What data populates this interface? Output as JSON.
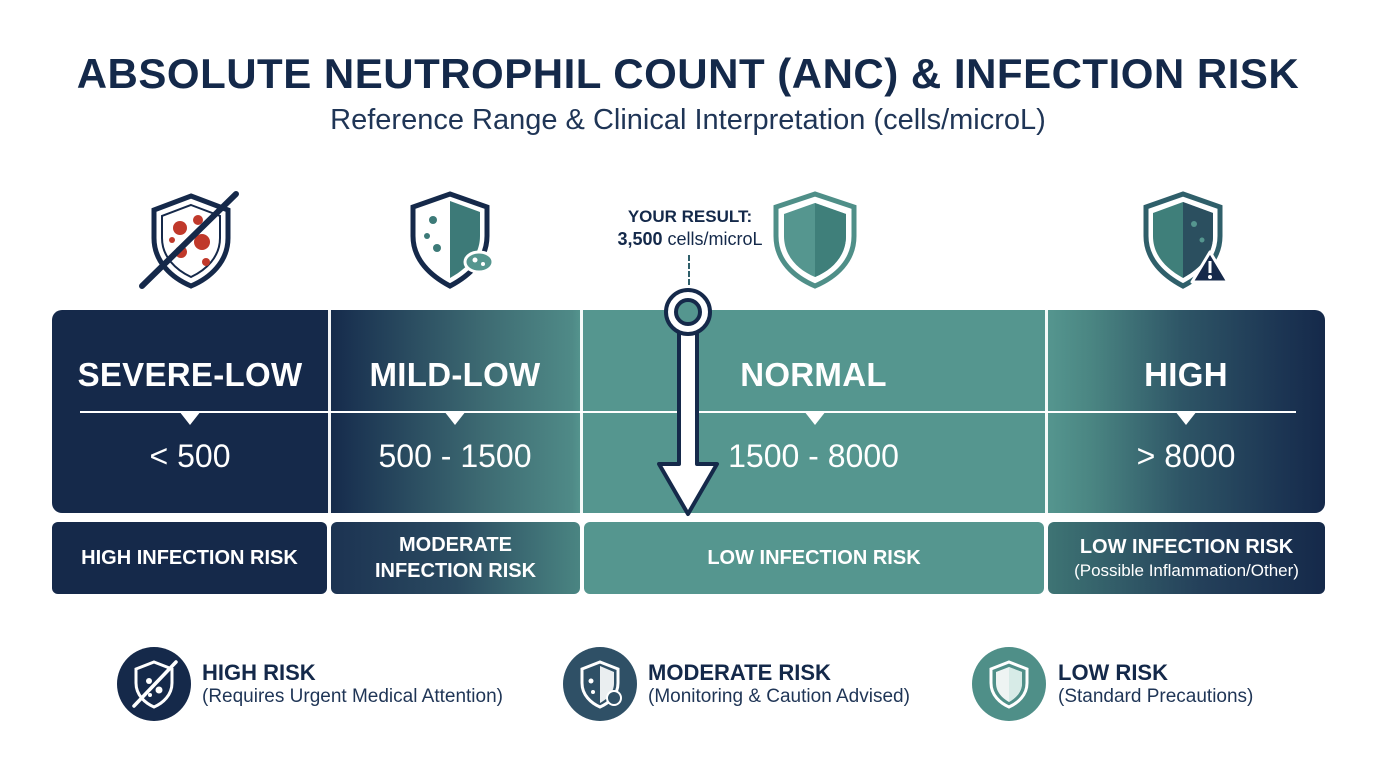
{
  "title": "ABSOLUTE NEUTROPHIL COUNT (ANC) & INFECTION RISK",
  "subtitle": "Reference Range & Clinical Interpretation (cells/microL)",
  "result": {
    "label": "YOUR RESULT:",
    "value": "3,500",
    "unit": "cells/microL"
  },
  "categories": [
    {
      "label": "SEVERE-LOW",
      "range": "< 500",
      "risk": "HIGH INFECTION RISK",
      "risk_sub": "",
      "icon": "crossed-shield-bacteria-icon"
    },
    {
      "label": "MILD-LOW",
      "range": "500 - 1500",
      "risk": "MODERATE",
      "risk_line2": "INFECTION RISK",
      "risk_sub": "",
      "icon": "half-shield-bacteria-icon"
    },
    {
      "label": "NORMAL",
      "range": "1500 - 8000",
      "risk": "LOW INFECTION RISK",
      "risk_sub": "",
      "icon": "shield-icon"
    },
    {
      "label": "HIGH",
      "range": "> 8000",
      "risk": "LOW INFECTION RISK",
      "risk_sub": "(Possible Inflammation/Other)",
      "icon": "shield-warning-icon"
    }
  ],
  "legend": [
    {
      "title": "HIGH RISK",
      "desc": "(Requires Urgent Medical Attention)",
      "icon": "crossed-shield-icon",
      "color": "#15294a"
    },
    {
      "title": "MODERATE RISK",
      "desc": "(Monitoring & Caution Advised)",
      "icon": "half-shield-icon",
      "color": "#2f5066"
    },
    {
      "title": "LOW RISK",
      "desc": "(Standard Precautions)",
      "icon": "shield-icon",
      "color": "#4f8f88"
    }
  ],
  "colors": {
    "navy": "#15294a",
    "teal": "#55968f",
    "white": "#ffffff"
  }
}
